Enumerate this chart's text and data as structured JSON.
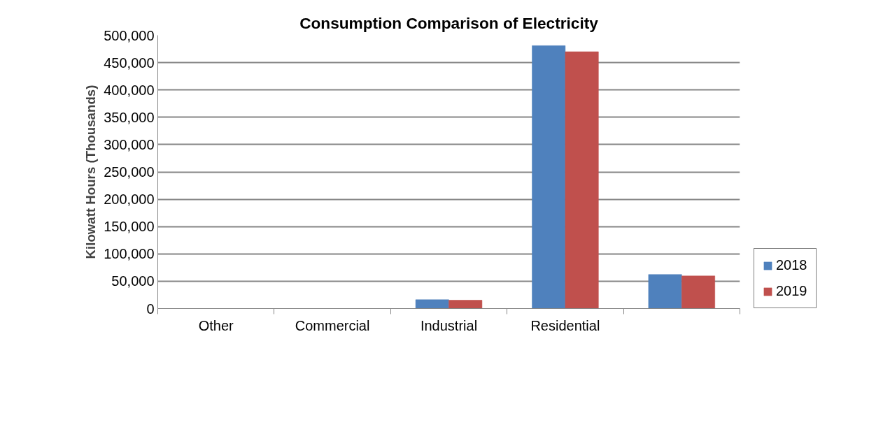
{
  "chart_data": {
    "type": "bar",
    "title": "Consumption Comparison of Electricity",
    "ylabel": "Kilowatt Hours (Thousands)",
    "categories": [
      "Other",
      "Commercial",
      "Industrial",
      "Residential",
      null
    ],
    "series": [
      {
        "name": "2018",
        "color": "#4f81bd",
        "values": [
          0,
          0,
          16200,
          481000,
          62300
        ]
      },
      {
        "name": "2019",
        "color": "#c0504d",
        "values": [
          0,
          0,
          15300,
          470000,
          59700
        ]
      }
    ],
    "ylim": [
      0,
      500000
    ],
    "yticks": [
      {
        "value": 0,
        "label": "0"
      },
      {
        "value": 50000,
        "label": "50,000"
      },
      {
        "value": 100000,
        "label": "100,000"
      },
      {
        "value": 150000,
        "label": "150,000"
      },
      {
        "value": 200000,
        "label": "200,000"
      },
      {
        "value": 250000,
        "label": "250,000"
      },
      {
        "value": 300000,
        "label": "300,000"
      },
      {
        "value": 350000,
        "label": "350,000"
      },
      {
        "value": 400000,
        "label": "400,000"
      },
      {
        "value": 450000,
        "label": "450,000"
      },
      {
        "value": 500000,
        "label": "500,000"
      }
    ],
    "grid": "y",
    "legend": "right"
  }
}
